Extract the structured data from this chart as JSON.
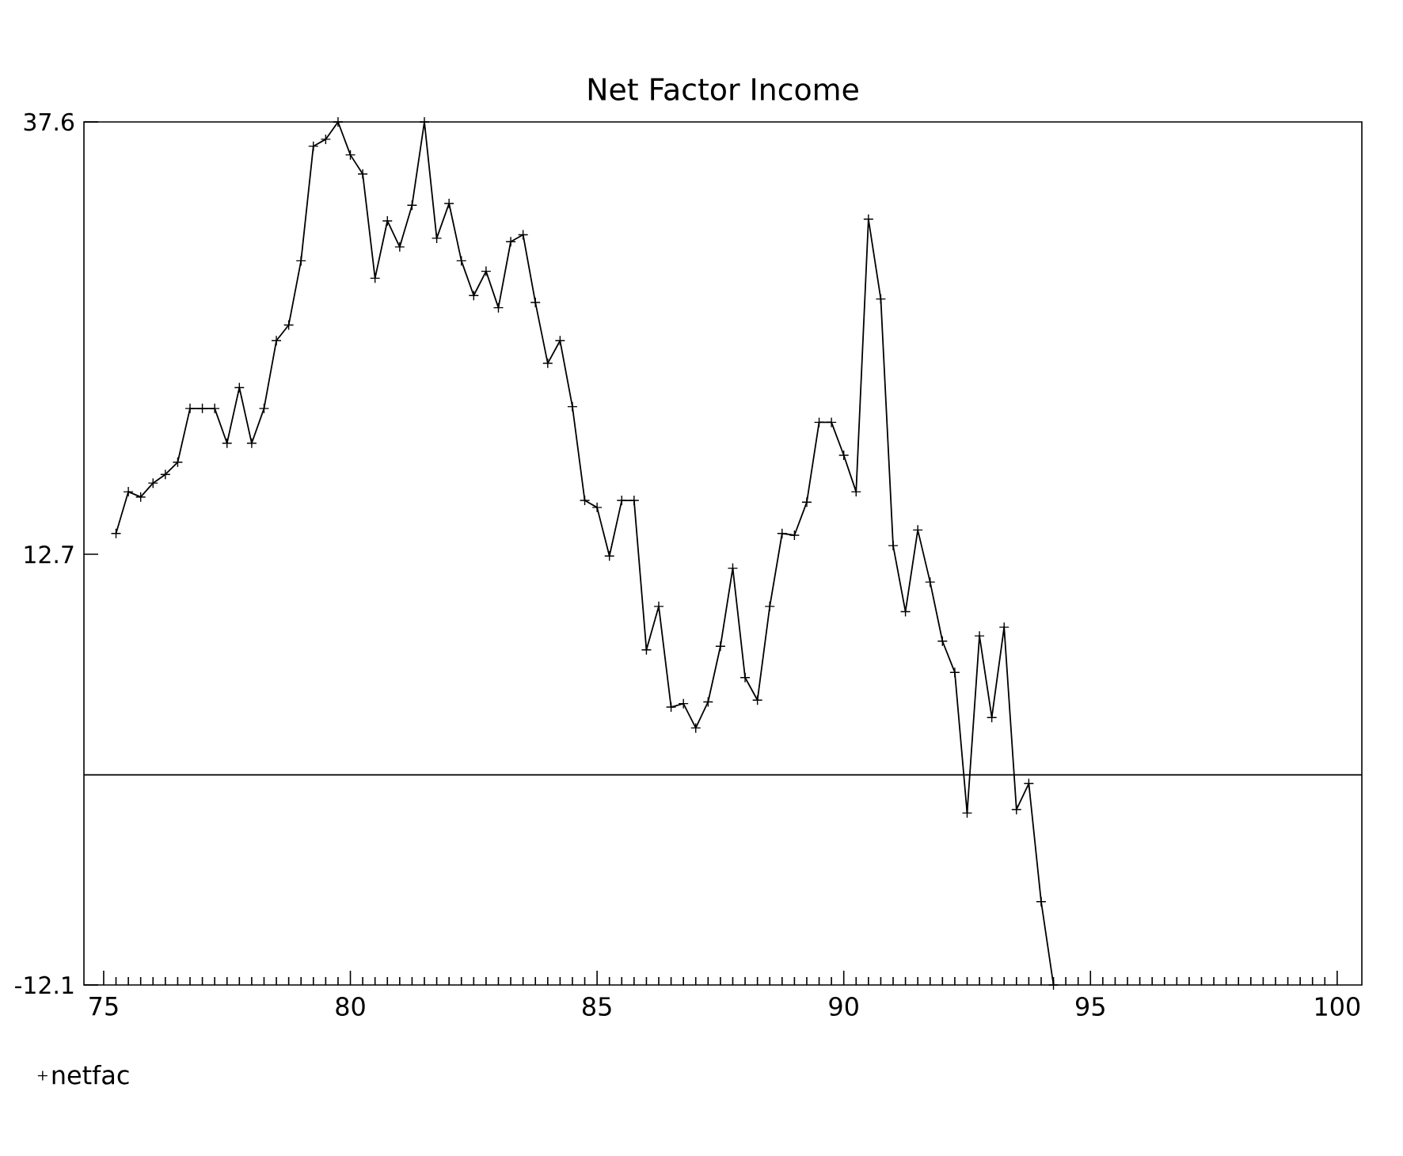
{
  "chart_data": {
    "type": "line",
    "title": "Net Factor Income",
    "x": [
      75.25,
      75.5,
      75.75,
      76,
      76.25,
      76.5,
      76.75,
      77,
      77.25,
      77.5,
      77.75,
      78,
      78.25,
      78.5,
      78.75,
      79,
      79.25,
      79.5,
      79.75,
      80,
      80.25,
      80.5,
      80.75,
      81,
      81.25,
      81.5,
      81.75,
      82,
      82.25,
      82.5,
      82.75,
      83,
      83.25,
      83.5,
      83.75,
      84,
      84.25,
      84.5,
      84.75,
      85,
      85.25,
      85.5,
      85.75,
      86,
      86.25,
      86.5,
      86.75,
      87,
      87.25,
      87.5,
      87.75,
      88,
      88.25,
      88.5,
      88.75,
      89,
      89.25,
      89.5,
      89.75,
      90,
      90.25,
      90.5,
      90.75,
      91,
      91.25,
      91.5,
      91.75,
      92,
      92.25,
      92.5,
      92.75,
      93,
      93.25,
      93.5,
      93.75,
      94,
      94.25
    ],
    "series": [
      {
        "name": "netfac",
        "color": "#000000",
        "values": [
          13.9,
          16.3,
          16.0,
          16.8,
          17.3,
          18.0,
          21.1,
          21.1,
          21.1,
          19.1,
          22.3,
          19.1,
          21.1,
          25.0,
          25.9,
          29.6,
          36.2,
          36.6,
          37.6,
          35.7,
          34.6,
          28.6,
          31.9,
          30.4,
          32.8,
          37.6,
          30.9,
          32.9,
          29.6,
          27.6,
          29.0,
          26.9,
          30.7,
          31.1,
          27.2,
          23.7,
          25.0,
          21.2,
          15.8,
          15.4,
          12.6,
          15.8,
          15.8,
          7.2,
          9.7,
          3.9,
          4.1,
          2.7,
          4.2,
          7.4,
          11.9,
          5.6,
          4.3,
          9.7,
          13.9,
          13.8,
          15.7,
          20.3,
          20.3,
          18.4,
          16.3,
          32.0,
          27.4,
          13.2,
          9.4,
          14.1,
          11.1,
          7.7,
          5.9,
          -2.2,
          8.0,
          3.3,
          8.5,
          -2.0,
          -0.5,
          -7.3,
          -12.1
        ]
      }
    ],
    "xlim": [
      74.6,
      100.5
    ],
    "xticks": [
      75,
      80,
      85,
      90,
      95,
      100
    ],
    "ylim": [
      -12.1,
      37.6
    ],
    "yticks": [
      37.6,
      12.7,
      -12.1
    ],
    "ref_lines": [
      {
        "axis": "y",
        "value": 0,
        "color": "#000000"
      }
    ],
    "legend": "bottom left",
    "marker": "cross",
    "line_style": "solid",
    "grid": false
  }
}
